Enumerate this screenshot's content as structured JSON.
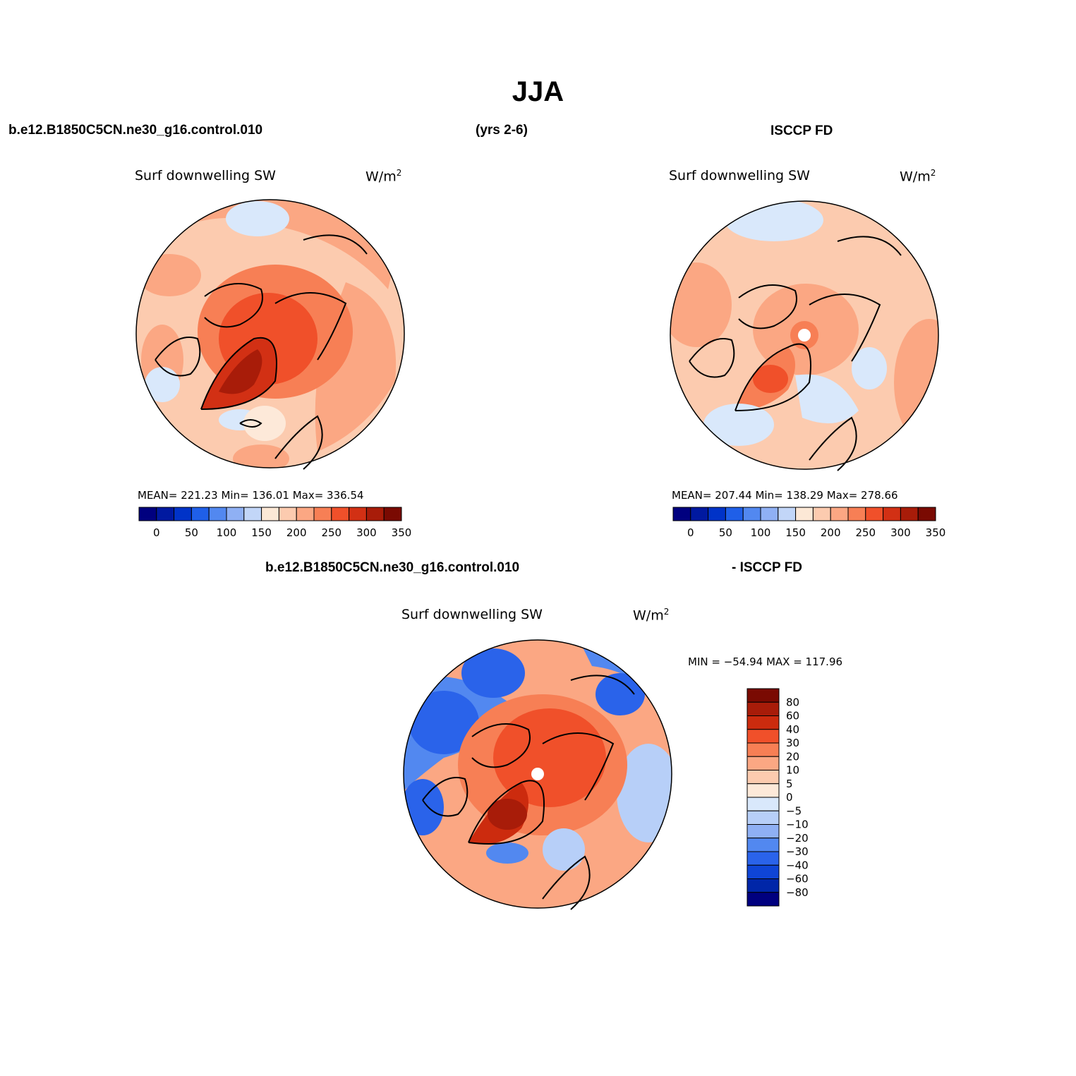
{
  "title": "JJA",
  "top_left_header": "b.e12.B1850C5CN.ne30_g16.control.010",
  "top_center_header": "(yrs 2-6)",
  "top_right_header": "ISCCP FD",
  "bottom_left_header": "b.e12.B1850C5CN.ne30_g16.control.010",
  "bottom_right_header": "- ISCCP FD",
  "panels": [
    {
      "name": "model",
      "variable": "Surf downwelling SW",
      "units_base": "W/m",
      "units_sup": "2",
      "stats": "MEAN= 221.23   Min= 136.01   Max= 336.54"
    },
    {
      "name": "obs",
      "variable": "Surf downwelling SW",
      "units_base": "W/m",
      "units_sup": "2",
      "stats": "MEAN= 207.44   Min= 138.29   Max= 278.66"
    },
    {
      "name": "diff",
      "variable": "Surf downwelling SW",
      "units_base": "W/m",
      "units_sup": "2",
      "stats": "MIN = −54.94  MAX = 117.96"
    }
  ],
  "abs_colorbar": {
    "colors": [
      "#00007f",
      "#0019a0",
      "#0033c8",
      "#1f5fe8",
      "#5288f0",
      "#8fb0f4",
      "#c2d6f8",
      "#fce8d6",
      "#fccbaf",
      "#fba783",
      "#f77f55",
      "#f0502a",
      "#d23014",
      "#a81c09",
      "#7a0a02"
    ],
    "labels": [
      "0",
      "50",
      "100",
      "150",
      "200",
      "250",
      "300",
      "350"
    ]
  },
  "diff_colorbar": {
    "colors": [
      "#7a0a02",
      "#a81c09",
      "#cc2b0e",
      "#f0502a",
      "#f77f55",
      "#fba783",
      "#fccbaf",
      "#fde9d9",
      "#d9e8fb",
      "#b7cff8",
      "#8fb0f4",
      "#5288f0",
      "#2a63ea",
      "#0f45d6",
      "#0026a8",
      "#00007f"
    ],
    "labels": [
      "80",
      "60",
      "40",
      "30",
      "20",
      "10",
      "5",
      "0",
      "−5",
      "−10",
      "−20",
      "−30",
      "−40",
      "−60",
      "−80"
    ]
  }
}
